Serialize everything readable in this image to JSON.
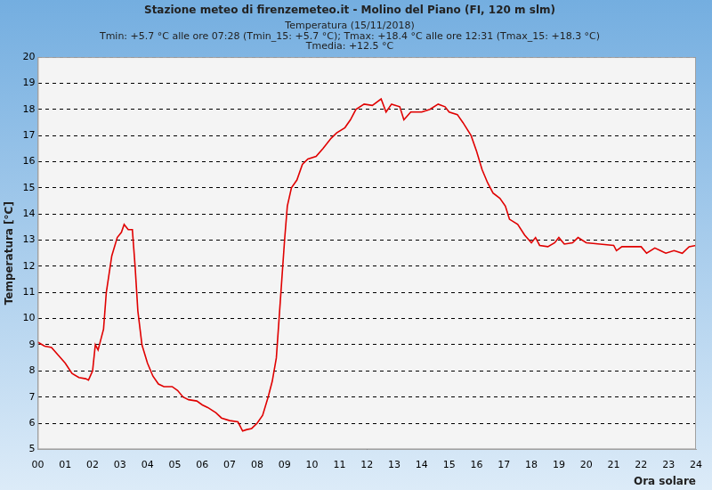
{
  "chart_data": {
    "type": "line",
    "title": "Stazione meteo di firenzemeteo.it - Molino del Piano (FI, 120 m slm)",
    "subtitle": [
      "Temperatura (15/11/2018)",
      "Tmin: +5.7 °C alle ore 07:28 (Tmin_15: +5.7 °C); Tmax: +18.4 °C alle ore 12:31 (Tmax_15: +18.3 °C)",
      "Tmedia: +12.5 °C"
    ],
    "x_label": "Ora solare",
    "y_label": "Temperatura [°C]",
    "x": [
      0,
      0.25,
      0.5,
      0.75,
      1.0,
      1.25,
      1.5,
      1.75,
      1.85,
      2.0,
      2.1,
      2.2,
      2.3,
      2.4,
      2.5,
      2.7,
      2.9,
      3.05,
      3.15,
      3.3,
      3.45,
      3.55,
      3.65,
      3.8,
      4.0,
      4.2,
      4.4,
      4.6,
      4.9,
      5.1,
      5.3,
      5.5,
      5.8,
      6.0,
      6.2,
      6.5,
      6.7,
      7.0,
      7.3,
      7.47,
      7.6,
      7.8,
      8.0,
      8.2,
      8.4,
      8.55,
      8.7,
      8.8,
      8.9,
      9.0,
      9.1,
      9.25,
      9.45,
      9.65,
      9.85,
      10.15,
      10.4,
      10.7,
      10.9,
      11.2,
      11.4,
      11.6,
      11.9,
      12.2,
      12.52,
      12.7,
      12.9,
      13.2,
      13.35,
      13.6,
      14.0,
      14.3,
      14.6,
      14.85,
      15.0,
      15.3,
      15.5,
      15.8,
      16.0,
      16.2,
      16.4,
      16.6,
      16.85,
      17.05,
      17.2,
      17.5,
      17.75,
      18.0,
      18.15,
      18.3,
      18.6,
      18.85,
      19.0,
      19.2,
      19.5,
      19.7,
      20.0,
      20.5,
      21.0,
      21.1,
      21.3,
      22.0,
      22.2,
      22.5,
      22.7,
      22.9,
      23.2,
      23.5,
      23.75,
      24.0
    ],
    "values": [
      9.1,
      8.95,
      8.9,
      8.6,
      8.3,
      7.9,
      7.75,
      7.7,
      7.65,
      8.0,
      9.0,
      8.8,
      9.2,
      9.6,
      11.0,
      12.4,
      13.1,
      13.3,
      13.6,
      13.4,
      13.4,
      12.0,
      10.3,
      9.0,
      8.3,
      7.8,
      7.5,
      7.4,
      7.4,
      7.25,
      7.0,
      6.9,
      6.85,
      6.7,
      6.6,
      6.4,
      6.2,
      6.1,
      6.05,
      5.7,
      5.75,
      5.8,
      6.0,
      6.3,
      7.0,
      7.6,
      8.5,
      10.0,
      11.5,
      13.0,
      14.3,
      15.0,
      15.3,
      15.9,
      16.1,
      16.2,
      16.5,
      16.9,
      17.1,
      17.3,
      17.6,
      18.0,
      18.2,
      18.15,
      18.4,
      17.9,
      18.2,
      18.1,
      17.6,
      17.9,
      17.9,
      18.0,
      18.2,
      18.1,
      17.9,
      17.8,
      17.5,
      17.0,
      16.4,
      15.7,
      15.2,
      14.8,
      14.6,
      14.3,
      13.8,
      13.6,
      13.2,
      12.9,
      13.1,
      12.8,
      12.75,
      12.9,
      13.1,
      12.85,
      12.9,
      13.1,
      12.9,
      12.85,
      12.8,
      12.6,
      12.75,
      12.75,
      12.5,
      12.7,
      12.6,
      12.5,
      12.6,
      12.5,
      12.75,
      12.8
    ],
    "color": "#e00000",
    "xlim": [
      0,
      24
    ],
    "xticks": [
      {
        "value": 0,
        "label": "00"
      },
      {
        "value": 1,
        "label": "01"
      },
      {
        "value": 2,
        "label": "02"
      },
      {
        "value": 3,
        "label": "03"
      },
      {
        "value": 4,
        "label": "04"
      },
      {
        "value": 5,
        "label": "05"
      },
      {
        "value": 6,
        "label": "06"
      },
      {
        "value": 7,
        "label": "07"
      },
      {
        "value": 8,
        "label": "08"
      },
      {
        "value": 9,
        "label": "09"
      },
      10,
      11,
      12,
      13,
      14,
      15,
      16,
      17,
      18,
      19,
      20,
      21,
      22,
      23,
      24
    ],
    "ylim": [
      5,
      20
    ],
    "yticks": [
      5,
      6,
      7,
      8,
      9,
      10,
      11,
      12,
      13,
      14,
      15,
      16,
      17,
      18,
      19,
      20
    ],
    "grid": "y"
  }
}
